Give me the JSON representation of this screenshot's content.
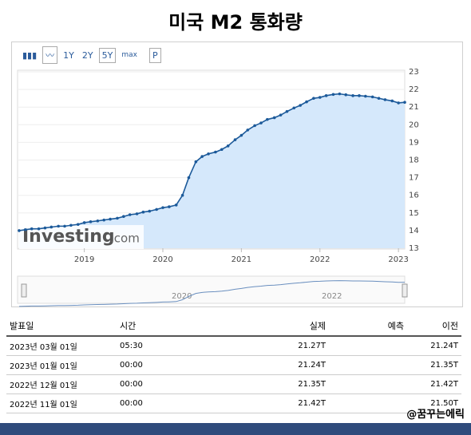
{
  "title": "미국 M2 통화량",
  "toolbar": [
    "1Y",
    "2Y",
    "5Y",
    "max",
    "P"
  ],
  "logo": {
    "brand": "Investing",
    "suffix": ".com"
  },
  "chart_data": {
    "type": "line",
    "color": "#1c5a9a",
    "fill": "#d5e8fb",
    "grid": true,
    "x": [
      2018.17,
      2018.25,
      2018.33,
      2018.42,
      2018.5,
      2018.58,
      2018.67,
      2018.75,
      2018.83,
      2018.92,
      2019.0,
      2019.08,
      2019.17,
      2019.25,
      2019.33,
      2019.42,
      2019.5,
      2019.58,
      2019.67,
      2019.75,
      2019.83,
      2019.92,
      2020.0,
      2020.08,
      2020.17,
      2020.25,
      2020.33,
      2020.42,
      2020.5,
      2020.58,
      2020.67,
      2020.75,
      2020.83,
      2020.92,
      2021.0,
      2021.08,
      2021.17,
      2021.25,
      2021.33,
      2021.42,
      2021.5,
      2021.58,
      2021.67,
      2021.75,
      2021.83,
      2021.92,
      2022.0,
      2022.08,
      2022.17,
      2022.25,
      2022.33,
      2022.42,
      2022.5,
      2022.58,
      2022.67,
      2022.75,
      2022.83,
      2022.92,
      2023.0,
      2023.08
    ],
    "values": [
      14.0,
      14.05,
      14.1,
      14.1,
      14.15,
      14.2,
      14.25,
      14.25,
      14.3,
      14.35,
      14.45,
      14.5,
      14.55,
      14.6,
      14.65,
      14.7,
      14.8,
      14.9,
      14.95,
      15.05,
      15.1,
      15.2,
      15.3,
      15.35,
      15.45,
      16.0,
      17.0,
      17.9,
      18.2,
      18.35,
      18.45,
      18.6,
      18.8,
      19.15,
      19.4,
      19.7,
      19.95,
      20.1,
      20.3,
      20.4,
      20.55,
      20.75,
      20.95,
      21.1,
      21.3,
      21.5,
      21.55,
      21.65,
      21.72,
      21.75,
      21.7,
      21.65,
      21.65,
      21.62,
      21.58,
      21.5,
      21.42,
      21.35,
      21.24,
      21.27
    ],
    "xlim": [
      2018.15,
      2023.08
    ],
    "xticks": [
      2019,
      2020,
      2021,
      2022,
      2023
    ],
    "ylim": [
      13,
      23
    ],
    "yticks": [
      13,
      14,
      15,
      16,
      17,
      18,
      19,
      20,
      21,
      22,
      23
    ]
  },
  "navigator_labels": [
    "2020",
    "2022"
  ],
  "table": {
    "headers": [
      "발표일",
      "시간",
      "실제",
      "예측",
      "이전"
    ],
    "rows": [
      [
        "2023년 03월 01일",
        "05:30",
        "21.27T",
        "",
        "21.24T"
      ],
      [
        "2023년 01월 01일",
        "00:00",
        "21.24T",
        "",
        "21.35T"
      ],
      [
        "2022년 12월 01일",
        "00:00",
        "21.35T",
        "",
        "21.42T"
      ],
      [
        "2022년 11월 01일",
        "00:00",
        "21.42T",
        "",
        "21.50T"
      ]
    ]
  },
  "watermark": "@꿈꾸는에릭"
}
